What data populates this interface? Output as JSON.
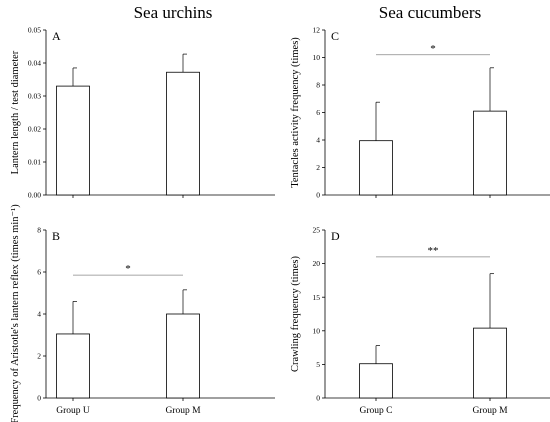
{
  "column_titles": [
    "Sea urchins",
    "Sea cucumbers"
  ],
  "chart_data": [
    {
      "type": "bar",
      "panel": "A",
      "ylabel": "Lantern length / test diameter",
      "categories": [
        "Group U",
        "Group M"
      ],
      "show_category_labels": false,
      "values": [
        0.033,
        0.0372
      ],
      "errors": [
        0.0055,
        0.0055
      ],
      "ylim": [
        0,
        0.05
      ],
      "yticks": [
        0.0,
        0.01,
        0.02,
        0.03,
        0.04,
        0.05
      ],
      "yticklabels": [
        "0.00",
        "0.01",
        "0.02",
        "0.03",
        "0.04",
        "0.05"
      ],
      "significance": null
    },
    {
      "type": "bar",
      "panel": "C",
      "ylabel": "Tentacles activity frequency (times)",
      "categories": [
        "Group C",
        "Group M"
      ],
      "show_category_labels": false,
      "values": [
        3.95,
        6.1
      ],
      "errors": [
        2.8,
        3.15
      ],
      "ylim": [
        0,
        12
      ],
      "yticks": [
        0,
        2,
        4,
        6,
        8,
        10,
        12
      ],
      "yticklabels": [
        "0",
        "2",
        "4",
        "6",
        "8",
        "10",
        "12"
      ],
      "significance": {
        "label": "*",
        "y": 10.2
      }
    },
    {
      "type": "bar",
      "panel": "B",
      "ylabel": "Frequency of Aristotle's lantern reflex (times min⁻¹)",
      "categories": [
        "Group U",
        "Group M"
      ],
      "show_category_labels": true,
      "values": [
        3.05,
        4.0
      ],
      "errors": [
        1.55,
        1.15
      ],
      "ylim": [
        0,
        8
      ],
      "yticks": [
        0,
        2,
        4,
        6,
        8
      ],
      "yticklabels": [
        "0",
        "2",
        "4",
        "6",
        "8"
      ],
      "significance": {
        "label": "*",
        "y": 5.85
      }
    },
    {
      "type": "bar",
      "panel": "D",
      "ylabel": "Crawling frequency (times)",
      "categories": [
        "Group C",
        "Group M"
      ],
      "show_category_labels": true,
      "values": [
        5.1,
        10.4
      ],
      "errors": [
        2.7,
        8.1
      ],
      "ylim": [
        0,
        25
      ],
      "yticks": [
        0,
        5,
        10,
        15,
        20,
        25
      ],
      "yticklabels": [
        "0",
        "5",
        "10",
        "15",
        "20",
        "25"
      ],
      "significance": {
        "label": "**",
        "y": 21.0
      }
    }
  ]
}
